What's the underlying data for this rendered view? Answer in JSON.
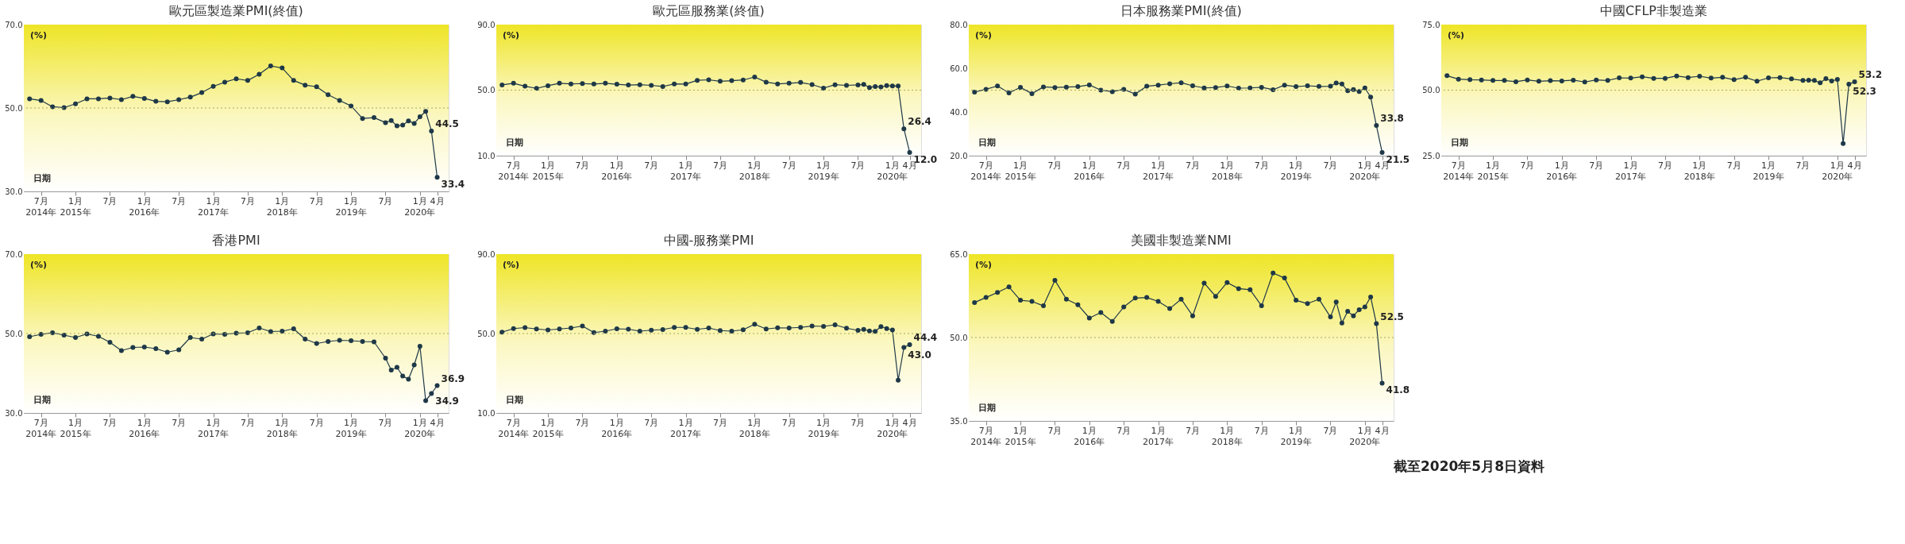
{
  "chart_data": [
    {
      "type": "line",
      "title": "歐元區製造業PMI(終值)",
      "x": [
        "2014-05",
        "2014-07",
        "2014-09",
        "2014-11",
        "2015-01",
        "2015-03",
        "2015-05",
        "2015-07",
        "2015-09",
        "2015-11",
        "2016-01",
        "2016-03",
        "2016-05",
        "2016-07",
        "2016-09",
        "2016-11",
        "2017-01",
        "2017-03",
        "2017-05",
        "2017-07",
        "2017-09",
        "2017-11",
        "2018-01",
        "2018-03",
        "2018-05",
        "2018-07",
        "2018-09",
        "2018-11",
        "2019-01",
        "2019-03",
        "2019-05",
        "2019-07",
        "2019-08",
        "2019-09",
        "2019-10",
        "2019-11",
        "2019-12",
        "2020-01",
        "2020-02",
        "2020-03",
        "2020-04"
      ],
      "series": [
        {
          "color": "#1e3848",
          "values": [
            52.2,
            51.8,
            50.3,
            50.1,
            51.0,
            52.2,
            52.2,
            52.4,
            52.0,
            52.8,
            52.3,
            51.6,
            51.5,
            52.0,
            52.6,
            53.7,
            55.2,
            56.2,
            57.0,
            56.6,
            58.1,
            60.1,
            59.6,
            56.6,
            55.5,
            55.1,
            53.2,
            51.8,
            50.5,
            47.5,
            47.7,
            46.5,
            47.0,
            45.7,
            45.9,
            46.9,
            46.3,
            47.9,
            49.2,
            44.5,
            33.4
          ]
        }
      ],
      "xlim": [
        "2014-04",
        "2020-06"
      ],
      "ylim": [
        30,
        70
      ],
      "yticks": [
        {
          "value": 30,
          "label": "30.0"
        },
        {
          "value": 50,
          "label": "50.0"
        },
        {
          "value": 70,
          "label": "70.0"
        }
      ],
      "xticks": [
        {
          "value": "2014-07",
          "label": "7月 2014年"
        },
        {
          "value": "2015-01",
          "label": "1月 2015年"
        },
        {
          "value": "2015-07",
          "label": "7月"
        },
        {
          "value": "2016-01",
          "label": "1月 2016年"
        },
        {
          "value": "2016-07",
          "label": "7月"
        },
        {
          "value": "2017-01",
          "label": "1月 2017年"
        },
        {
          "value": "2017-07",
          "label": "7月"
        },
        {
          "value": "2018-01",
          "label": "1月 2018年"
        },
        {
          "value": "2018-07",
          "label": "7月"
        },
        {
          "value": "2019-01",
          "label": "1月 2019年"
        },
        {
          "value": "2019-07",
          "label": "7月"
        },
        {
          "value": "2020-01",
          "label": "1月 2020年"
        },
        {
          "value": "2020-04",
          "label": "4月"
        }
      ],
      "marker": "circle",
      "ref_lines": [
        {
          "axis": "y",
          "value": 50,
          "line_style": "dotted",
          "color": "#a8a860"
        }
      ],
      "annotations": [
        "(%)",
        "日期",
        {
          "text": "44.5",
          "x": "2020-03",
          "y": 44.5
        },
        {
          "text": "33.4",
          "x": "2020-04",
          "y": 33.4
        }
      ]
    },
    {
      "type": "line",
      "title": "歐元區服務業(終值)",
      "x": [
        "2014-05",
        "2014-07",
        "2014-09",
        "2014-11",
        "2015-01",
        "2015-03",
        "2015-05",
        "2015-07",
        "2015-09",
        "2015-11",
        "2016-01",
        "2016-03",
        "2016-05",
        "2016-07",
        "2016-09",
        "2016-11",
        "2017-01",
        "2017-03",
        "2017-05",
        "2017-07",
        "2017-09",
        "2017-11",
        "2018-01",
        "2018-03",
        "2018-05",
        "2018-07",
        "2018-09",
        "2018-11",
        "2019-01",
        "2019-03",
        "2019-05",
        "2019-07",
        "2019-08",
        "2019-09",
        "2019-10",
        "2019-11",
        "2019-12",
        "2020-01",
        "2020-02",
        "2020-03",
        "2020-04"
      ],
      "series": [
        {
          "color": "#1e3848",
          "values": [
            53.2,
            54.2,
            52.4,
            51.1,
            52.7,
            54.2,
            53.8,
            54.0,
            53.7,
            54.2,
            53.6,
            53.1,
            53.3,
            52.9,
            52.2,
            53.8,
            53.7,
            56.0,
            56.3,
            55.4,
            55.8,
            56.2,
            58.0,
            54.9,
            53.8,
            54.2,
            54.7,
            53.4,
            51.2,
            53.3,
            52.9,
            53.2,
            53.5,
            51.6,
            52.2,
            51.9,
            52.8,
            52.5,
            52.6,
            26.4,
            12.0
          ]
        }
      ],
      "xlim": [
        "2014-04",
        "2020-06"
      ],
      "ylim": [
        10,
        90
      ],
      "yticks": [
        {
          "value": 10,
          "label": "10.0"
        },
        {
          "value": 50,
          "label": "50.0"
        },
        {
          "value": 90,
          "label": "90.0"
        }
      ],
      "xticks": [
        {
          "value": "2014-07",
          "label": "7月 2014年"
        },
        {
          "value": "2015-01",
          "label": "1月 2015年"
        },
        {
          "value": "2015-07",
          "label": "7月"
        },
        {
          "value": "2016-01",
          "label": "1月 2016年"
        },
        {
          "value": "2016-07",
          "label": "7月"
        },
        {
          "value": "2017-01",
          "label": "1月 2017年"
        },
        {
          "value": "2017-07",
          "label": "7月"
        },
        {
          "value": "2018-01",
          "label": "1月 2018年"
        },
        {
          "value": "2018-07",
          "label": "7月"
        },
        {
          "value": "2019-01",
          "label": "1月 2019年"
        },
        {
          "value": "2019-07",
          "label": "7月"
        },
        {
          "value": "2020-01",
          "label": "1月 2020年"
        },
        {
          "value": "2020-04",
          "label": "4月"
        }
      ],
      "marker": "circle",
      "ref_lines": [
        {
          "axis": "y",
          "value": 50,
          "line_style": "dotted",
          "color": "#a8a860"
        }
      ],
      "annotations": [
        "(%)",
        "日期",
        {
          "text": "26.4",
          "x": "2020-03",
          "y": 26.4
        },
        {
          "text": "12.0",
          "x": "2020-04",
          "y": 12.0
        }
      ]
    },
    {
      "type": "line",
      "title": "日本服務業PMI(終值)",
      "x": [
        "2014-05",
        "2014-07",
        "2014-09",
        "2014-11",
        "2015-01",
        "2015-03",
        "2015-05",
        "2015-07",
        "2015-09",
        "2015-11",
        "2016-01",
        "2016-03",
        "2016-05",
        "2016-07",
        "2016-09",
        "2016-11",
        "2017-01",
        "2017-03",
        "2017-05",
        "2017-07",
        "2017-09",
        "2017-11",
        "2018-01",
        "2018-03",
        "2018-05",
        "2018-07",
        "2018-09",
        "2018-11",
        "2019-01",
        "2019-03",
        "2019-05",
        "2019-07",
        "2019-08",
        "2019-09",
        "2019-10",
        "2019-11",
        "2019-12",
        "2020-01",
        "2020-02",
        "2020-03",
        "2020-04"
      ],
      "series": [
        {
          "color": "#1e3848",
          "values": [
            49.1,
            50.4,
            51.9,
            48.7,
            51.3,
            48.4,
            51.5,
            51.2,
            51.4,
            51.6,
            52.4,
            50.0,
            49.3,
            50.4,
            48.2,
            51.8,
            52.3,
            52.9,
            53.4,
            52.0,
            51.0,
            51.2,
            51.9,
            50.9,
            51.0,
            51.3,
            50.2,
            52.3,
            51.6,
            52.0,
            51.7,
            51.8,
            53.3,
            52.8,
            49.7,
            50.3,
            49.4,
            51.0,
            46.8,
            33.8,
            21.5
          ]
        }
      ],
      "xlim": [
        "2014-04",
        "2020-06"
      ],
      "ylim": [
        20,
        80
      ],
      "yticks": [
        {
          "value": 20,
          "label": "20.0"
        },
        {
          "value": 40,
          "label": "40.0"
        },
        {
          "value": 60,
          "label": "60.0"
        },
        {
          "value": 80,
          "label": "80.0"
        }
      ],
      "xticks": [
        {
          "value": "2014-07",
          "label": "7月 2014年"
        },
        {
          "value": "2015-01",
          "label": "1月 2015年"
        },
        {
          "value": "2015-07",
          "label": "7月"
        },
        {
          "value": "2016-01",
          "label": "1月 2016年"
        },
        {
          "value": "2016-07",
          "label": "7月"
        },
        {
          "value": "2017-01",
          "label": "1月 2017年"
        },
        {
          "value": "2017-07",
          "label": "7月"
        },
        {
          "value": "2018-01",
          "label": "1月 2018年"
        },
        {
          "value": "2018-07",
          "label": "7月"
        },
        {
          "value": "2019-01",
          "label": "1月 2019年"
        },
        {
          "value": "2019-07",
          "label": "7月"
        },
        {
          "value": "2020-01",
          "label": "1月 2020年"
        },
        {
          "value": "2020-04",
          "label": "4月"
        }
      ],
      "marker": "circle",
      "ref_lines": [
        {
          "axis": "y",
          "value": 50,
          "line_style": "dotted",
          "color": "#a8a860"
        }
      ],
      "annotations": [
        "(%)",
        "日期",
        {
          "text": "33.8",
          "x": "2020-03",
          "y": 33.8
        },
        {
          "text": "21.5",
          "x": "2020-04",
          "y": 21.5
        }
      ]
    },
    {
      "type": "line",
      "title": "中國CFLP非製造業",
      "x": [
        "2014-05",
        "2014-07",
        "2014-09",
        "2014-11",
        "2015-01",
        "2015-03",
        "2015-05",
        "2015-07",
        "2015-09",
        "2015-11",
        "2016-01",
        "2016-03",
        "2016-05",
        "2016-07",
        "2016-09",
        "2016-11",
        "2017-01",
        "2017-03",
        "2017-05",
        "2017-07",
        "2017-09",
        "2017-11",
        "2018-01",
        "2018-03",
        "2018-05",
        "2018-07",
        "2018-09",
        "2018-11",
        "2019-01",
        "2019-03",
        "2019-05",
        "2019-07",
        "2019-08",
        "2019-09",
        "2019-10",
        "2019-11",
        "2019-12",
        "2020-01",
        "2020-02",
        "2020-03",
        "2020-04"
      ],
      "series": [
        {
          "color": "#1e3848",
          "values": [
            55.5,
            54.2,
            54.0,
            53.9,
            53.7,
            53.7,
            53.2,
            53.9,
            53.4,
            53.6,
            53.5,
            53.8,
            53.1,
            53.9,
            53.7,
            54.7,
            54.6,
            55.1,
            54.5,
            54.5,
            55.4,
            54.8,
            55.3,
            54.6,
            54.9,
            54.0,
            54.9,
            53.4,
            54.7,
            54.8,
            54.3,
            53.7,
            53.8,
            53.7,
            52.8,
            54.4,
            53.5,
            54.1,
            29.6,
            52.3,
            53.2
          ]
        }
      ],
      "xlim": [
        "2014-04",
        "2020-06"
      ],
      "ylim": [
        25,
        75
      ],
      "yticks": [
        {
          "value": 25,
          "label": "25.0"
        },
        {
          "value": 50,
          "label": "50.0"
        },
        {
          "value": 75,
          "label": "75.0"
        }
      ],
      "xticks": [
        {
          "value": "2014-07",
          "label": "7月 2014年"
        },
        {
          "value": "2015-01",
          "label": "1月 2015年"
        },
        {
          "value": "2015-07",
          "label": "7月"
        },
        {
          "value": "2016-01",
          "label": "1月 2016年"
        },
        {
          "value": "2016-07",
          "label": "7月"
        },
        {
          "value": "2017-01",
          "label": "1月 2017年"
        },
        {
          "value": "2017-07",
          "label": "7月"
        },
        {
          "value": "2018-01",
          "label": "1月 2018年"
        },
        {
          "value": "2018-07",
          "label": "7月"
        },
        {
          "value": "2019-01",
          "label": "1月 2019年"
        },
        {
          "value": "2019-07",
          "label": "7月"
        },
        {
          "value": "2020-01",
          "label": "1月 2020年"
        },
        {
          "value": "2020-04",
          "label": "4月"
        }
      ],
      "marker": "circle",
      "ref_lines": [
        {
          "axis": "y",
          "value": 50,
          "line_style": "dotted",
          "color": "#a8a860"
        }
      ],
      "annotations": [
        "(%)",
        "日期",
        {
          "text": "52.3",
          "x": "2020-03",
          "y": 52.3
        },
        {
          "text": "53.2",
          "x": "2020-04",
          "y": 53.2
        }
      ]
    },
    {
      "type": "line",
      "title": "香港PMI",
      "x": [
        "2014-05",
        "2014-07",
        "2014-09",
        "2014-11",
        "2015-01",
        "2015-03",
        "2015-05",
        "2015-07",
        "2015-09",
        "2015-11",
        "2016-01",
        "2016-03",
        "2016-05",
        "2016-07",
        "2016-09",
        "2016-11",
        "2017-01",
        "2017-03",
        "2017-05",
        "2017-07",
        "2017-09",
        "2017-11",
        "2018-01",
        "2018-03",
        "2018-05",
        "2018-07",
        "2018-09",
        "2018-11",
        "2019-01",
        "2019-03",
        "2019-05",
        "2019-07",
        "2019-08",
        "2019-09",
        "2019-10",
        "2019-11",
        "2019-12",
        "2020-01",
        "2020-02",
        "2020-03",
        "2020-04"
      ],
      "series": [
        {
          "color": "#1e3848",
          "values": [
            49.2,
            49.8,
            50.2,
            49.6,
            49.0,
            49.9,
            49.3,
            47.8,
            45.7,
            46.5,
            46.6,
            46.2,
            45.3,
            45.9,
            49.0,
            48.6,
            49.9,
            49.8,
            50.1,
            50.2,
            51.4,
            50.5,
            50.6,
            51.2,
            48.6,
            47.5,
            48.0,
            48.3,
            48.2,
            48.0,
            47.9,
            43.8,
            40.8,
            41.5,
            39.3,
            38.5,
            42.1,
            46.8,
            33.1,
            34.9,
            36.9
          ]
        }
      ],
      "xlim": [
        "2014-04",
        "2020-06"
      ],
      "ylim": [
        30,
        70
      ],
      "yticks": [
        {
          "value": 30,
          "label": "30.0"
        },
        {
          "value": 50,
          "label": "50.0"
        },
        {
          "value": 70,
          "label": "70.0"
        }
      ],
      "xticks": [
        {
          "value": "2014-07",
          "label": "7月 2014年"
        },
        {
          "value": "2015-01",
          "label": "1月 2015年"
        },
        {
          "value": "2015-07",
          "label": "7月"
        },
        {
          "value": "2016-01",
          "label": "1月 2016年"
        },
        {
          "value": "2016-07",
          "label": "7月"
        },
        {
          "value": "2017-01",
          "label": "1月 2017年"
        },
        {
          "value": "2017-07",
          "label": "7月"
        },
        {
          "value": "2018-01",
          "label": "1月 2018年"
        },
        {
          "value": "2018-07",
          "label": "7月"
        },
        {
          "value": "2019-01",
          "label": "1月 2019年"
        },
        {
          "value": "2019-07",
          "label": "7月"
        },
        {
          "value": "2020-01",
          "label": "1月 2020年"
        },
        {
          "value": "2020-04",
          "label": "4月"
        }
      ],
      "marker": "circle",
      "ref_lines": [
        {
          "axis": "y",
          "value": 50,
          "line_style": "dotted",
          "color": "#a8a860"
        }
      ],
      "annotations": [
        "(%)",
        "日期",
        {
          "text": "34.9",
          "x": "2020-03",
          "y": 34.9
        },
        {
          "text": "36.9",
          "x": "2020-04",
          "y": 36.9
        }
      ]
    },
    {
      "type": "line",
      "title": "中國-服務業PMI",
      "x": [
        "2014-05",
        "2014-07",
        "2014-09",
        "2014-11",
        "2015-01",
        "2015-03",
        "2015-05",
        "2015-07",
        "2015-09",
        "2015-11",
        "2016-01",
        "2016-03",
        "2016-05",
        "2016-07",
        "2016-09",
        "2016-11",
        "2017-01",
        "2017-03",
        "2017-05",
        "2017-07",
        "2017-09",
        "2017-11",
        "2018-01",
        "2018-03",
        "2018-05",
        "2018-07",
        "2018-09",
        "2018-11",
        "2019-01",
        "2019-03",
        "2019-05",
        "2019-07",
        "2019-08",
        "2019-09",
        "2019-10",
        "2019-11",
        "2019-12",
        "2020-01",
        "2020-02",
        "2020-03",
        "2020-04"
      ],
      "series": [
        {
          "color": "#1e3848",
          "values": [
            50.7,
            52.5,
            53.0,
            52.3,
            51.8,
            52.3,
            52.8,
            53.8,
            50.5,
            51.2,
            52.4,
            52.2,
            51.2,
            51.7,
            52.0,
            53.1,
            53.1,
            52.1,
            52.8,
            51.5,
            51.2,
            51.9,
            54.7,
            52.3,
            52.9,
            52.8,
            53.1,
            53.8,
            53.6,
            54.4,
            52.7,
            51.6,
            52.1,
            51.3,
            51.1,
            53.5,
            52.5,
            51.8,
            26.5,
            43.0,
            44.4
          ]
        }
      ],
      "xlim": [
        "2014-04",
        "2020-06"
      ],
      "ylim": [
        10,
        90
      ],
      "yticks": [
        {
          "value": 10,
          "label": "10.0"
        },
        {
          "value": 50,
          "label": "50.0"
        },
        {
          "value": 90,
          "label": "90.0"
        }
      ],
      "xticks": [
        {
          "value": "2014-07",
          "label": "7月 2014年"
        },
        {
          "value": "2015-01",
          "label": "1月 2015年"
        },
        {
          "value": "2015-07",
          "label": "7月"
        },
        {
          "value": "2016-01",
          "label": "1月 2016年"
        },
        {
          "value": "2016-07",
          "label": "7月"
        },
        {
          "value": "2017-01",
          "label": "1月 2017年"
        },
        {
          "value": "2017-07",
          "label": "7月"
        },
        {
          "value": "2018-01",
          "label": "1月 2018年"
        },
        {
          "value": "2018-07",
          "label": "7月"
        },
        {
          "value": "2019-01",
          "label": "1月 2019年"
        },
        {
          "value": "2019-07",
          "label": "7月"
        },
        {
          "value": "2020-01",
          "label": "1月 2020年"
        },
        {
          "value": "2020-04",
          "label": "4月"
        }
      ],
      "marker": "circle",
      "ref_lines": [
        {
          "axis": "y",
          "value": 50,
          "line_style": "dotted",
          "color": "#a8a860"
        }
      ],
      "annotations": [
        "(%)",
        "日期",
        {
          "text": "43.0",
          "x": "2020-03",
          "y": 43.0
        },
        {
          "text": "44.4",
          "x": "2020-04",
          "y": 44.4
        }
      ]
    },
    {
      "type": "line",
      "title": "美國非製造業NMI",
      "x": [
        "2014-05",
        "2014-07",
        "2014-09",
        "2014-11",
        "2015-01",
        "2015-03",
        "2015-05",
        "2015-07",
        "2015-09",
        "2015-11",
        "2016-01",
        "2016-03",
        "2016-05",
        "2016-07",
        "2016-09",
        "2016-11",
        "2017-01",
        "2017-03",
        "2017-05",
        "2017-07",
        "2017-09",
        "2017-11",
        "2018-01",
        "2018-03",
        "2018-05",
        "2018-07",
        "2018-09",
        "2018-11",
        "2019-01",
        "2019-03",
        "2019-05",
        "2019-07",
        "2019-08",
        "2019-09",
        "2019-10",
        "2019-11",
        "2019-12",
        "2020-01",
        "2020-02",
        "2020-03",
        "2020-04"
      ],
      "series": [
        {
          "color": "#1e3848",
          "values": [
            56.3,
            57.2,
            58.1,
            59.1,
            56.7,
            56.5,
            55.7,
            60.3,
            56.9,
            55.9,
            53.5,
            54.5,
            52.9,
            55.5,
            57.1,
            57.2,
            56.5,
            55.2,
            56.9,
            53.9,
            59.8,
            57.4,
            59.9,
            58.8,
            58.6,
            55.7,
            61.6,
            60.7,
            56.7,
            56.1,
            56.9,
            53.7,
            56.4,
            52.6,
            54.7,
            53.9,
            55.0,
            55.5,
            57.3,
            52.5,
            41.8
          ]
        }
      ],
      "xlim": [
        "2014-04",
        "2020-06"
      ],
      "ylim": [
        35,
        65
      ],
      "yticks": [
        {
          "value": 35,
          "label": "35.0"
        },
        {
          "value": 50,
          "label": "50.0"
        },
        {
          "value": 65,
          "label": "65.0"
        }
      ],
      "xticks": [
        {
          "value": "2014-07",
          "label": "7月 2014年"
        },
        {
          "value": "2015-01",
          "label": "1月 2015年"
        },
        {
          "value": "2015-07",
          "label": "7月"
        },
        {
          "value": "2016-01",
          "label": "1月 2016年"
        },
        {
          "value": "2016-07",
          "label": "7月"
        },
        {
          "value": "2017-01",
          "label": "1月 2017年"
        },
        {
          "value": "2017-07",
          "label": "7月"
        },
        {
          "value": "2018-01",
          "label": "1月 2018年"
        },
        {
          "value": "2018-07",
          "label": "7月"
        },
        {
          "value": "2019-01",
          "label": "1月 2019年"
        },
        {
          "value": "2019-07",
          "label": "7月"
        },
        {
          "value": "2020-01",
          "label": "1月 2020年"
        },
        {
          "value": "2020-04",
          "label": "4月"
        }
      ],
      "marker": "circle",
      "ref_lines": [
        {
          "axis": "y",
          "value": 50,
          "line_style": "dotted",
          "color": "#a8a860"
        }
      ],
      "annotations": [
        "(%)",
        "日期",
        {
          "text": "52.5",
          "x": "2020-03",
          "y": 52.5
        },
        {
          "text": "41.8",
          "x": "2020-04",
          "y": 41.8
        },
        "截至2020年5月8日資料"
      ]
    }
  ]
}
